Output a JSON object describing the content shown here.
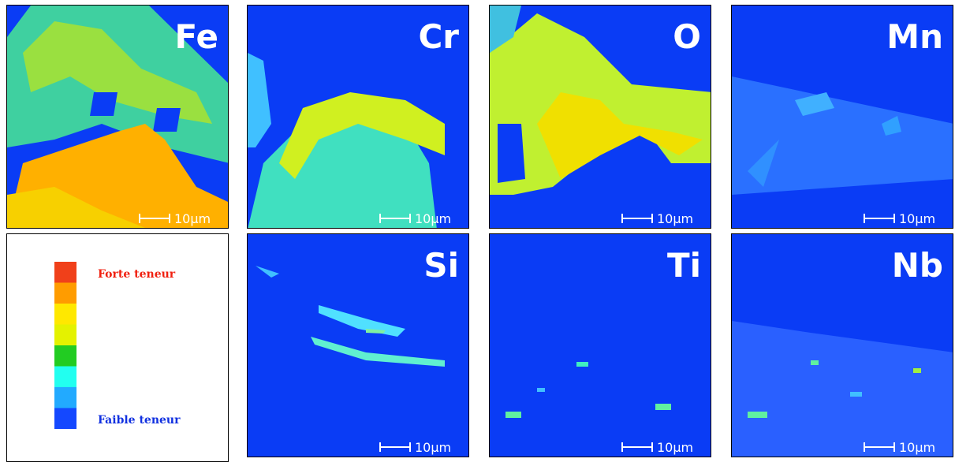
{
  "panels": [
    {
      "label": "Fe",
      "scale": "10μm"
    },
    {
      "label": "Cr",
      "scale": "10μm"
    },
    {
      "label": "O",
      "scale": "10μm"
    },
    {
      "label": "Mn",
      "scale": "10μm"
    },
    {
      "label": "Si",
      "scale": "10μm"
    },
    {
      "label": "Ti",
      "scale": "10μm"
    },
    {
      "label": "Nb",
      "scale": "10μm"
    }
  ],
  "legend": {
    "high": "Forte teneur",
    "low": "Faible teneur",
    "colors": [
      "#f0401a",
      "#ff9c00",
      "#ffe800",
      "#e4f200",
      "#22cc22",
      "#22fff0",
      "#22aaff",
      "#1448ff"
    ]
  }
}
